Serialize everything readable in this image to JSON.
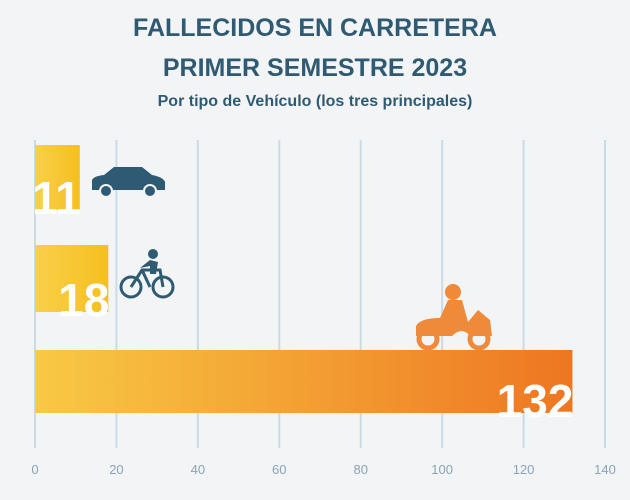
{
  "chart_data": {
    "type": "bar",
    "orientation": "horizontal",
    "title": "FALLECIDOS EN CARRETERA",
    "title2": "PRIMER SEMESTRE 2023",
    "subtitle": "Por tipo de Vehículo (los tres principales)",
    "categories": [
      null,
      null,
      null
    ],
    "values": [
      11,
      18,
      132
    ],
    "colors": [
      "#f6bf1f",
      "#f6bf1f",
      "#ee7622"
    ],
    "xlim": [
      0,
      140
    ],
    "xticks": [
      0,
      20,
      40,
      60,
      80,
      100,
      120,
      140
    ],
    "grid": true
  }
}
